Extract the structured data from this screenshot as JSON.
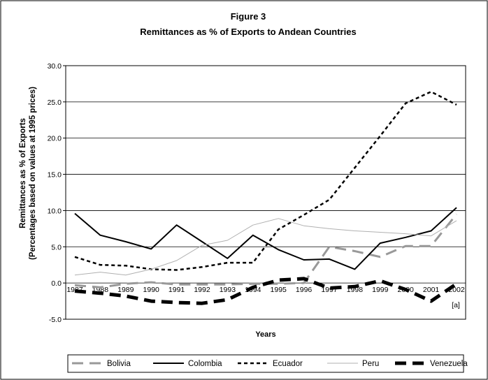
{
  "chart_data": {
    "type": "line",
    "title": "Figure 3",
    "subtitle": "Remittances as % of Exports to Andean Countries",
    "xlabel": "Years",
    "ylabel": "Remittances as % of Exports",
    "ylabel2": "(Percentages based on values at 1995 prices)",
    "footnote": "[a]",
    "ylim": [
      -5,
      30
    ],
    "yticks": [
      -5,
      0,
      5,
      10,
      15,
      20,
      25,
      30
    ],
    "ytick_labels": [
      "-5.0",
      "0.0",
      "5.0",
      "10.0",
      "15.0",
      "20.0",
      "25.0",
      "30.0"
    ],
    "x": [
      "1987",
      "1988",
      "1989",
      "1990",
      "1991",
      "1992",
      "1993",
      "1994",
      "1995",
      "1996",
      "1997",
      "1998",
      "1999",
      "2000",
      "2001",
      "2002"
    ],
    "grid": true,
    "legend_position": "bottom",
    "series": [
      {
        "name": "Bolivia",
        "color": "#999999",
        "style": "long-dash",
        "values": [
          -0.3,
          -0.6,
          -0.1,
          0.1,
          -0.2,
          -0.2,
          -0.2,
          -0.1,
          -0.1,
          0.0,
          5.0,
          4.4,
          3.6,
          5.1,
          5.1,
          9.5
        ]
      },
      {
        "name": "Colombia",
        "color": "#000000",
        "style": "solid",
        "values": [
          9.6,
          6.6,
          5.7,
          4.7,
          8.0,
          5.7,
          3.4,
          6.6,
          4.6,
          3.2,
          3.3,
          1.9,
          5.5,
          6.3,
          7.2,
          10.4
        ]
      },
      {
        "name": "Ecuador",
        "color": "#000000",
        "style": "short-dash",
        "values": [
          3.6,
          2.5,
          2.4,
          1.9,
          1.8,
          2.2,
          2.8,
          2.8,
          7.4,
          9.4,
          11.5,
          15.9,
          20.3,
          24.8,
          26.4,
          24.6
        ]
      },
      {
        "name": "Peru",
        "color": "#b0b0b0",
        "style": "thin",
        "values": [
          1.1,
          1.5,
          1.1,
          1.9,
          3.1,
          5.2,
          5.9,
          8.0,
          8.9,
          7.9,
          7.5,
          7.2,
          7.0,
          6.8,
          6.5,
          8.6
        ]
      },
      {
        "name": "Venezuela",
        "color": "#000000",
        "style": "thick-dash",
        "values": [
          -1.1,
          -1.4,
          -1.8,
          -2.5,
          -2.7,
          -2.8,
          -2.3,
          -0.6,
          0.4,
          0.6,
          -0.7,
          -0.5,
          0.3,
          -0.9,
          -2.5,
          -0.1
        ]
      }
    ]
  }
}
